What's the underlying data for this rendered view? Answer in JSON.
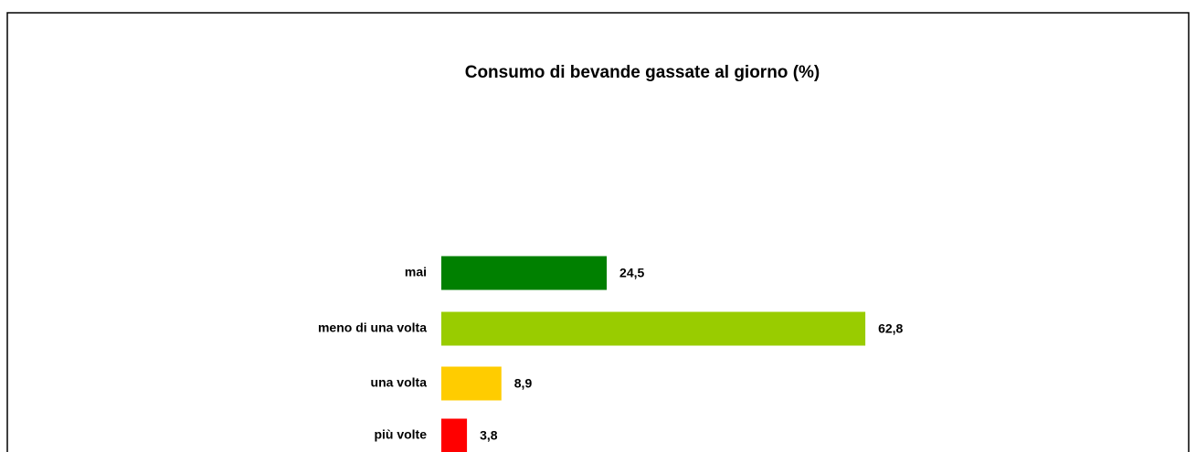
{
  "chart_data": {
    "type": "bar",
    "orientation": "horizontal",
    "title": "Consumo di bevande gassate al giorno (%)",
    "categories": [
      "mai",
      "meno di una volta",
      "una volta",
      "più volte"
    ],
    "values": [
      24.5,
      62.8,
      8.9,
      3.8
    ],
    "value_labels": [
      "24,5",
      "62,8",
      "8,9",
      "3,8"
    ],
    "colors": [
      "#008000",
      "#99cc00",
      "#ffcc00",
      "#ff0000"
    ],
    "xlim": [
      0,
      100
    ]
  }
}
